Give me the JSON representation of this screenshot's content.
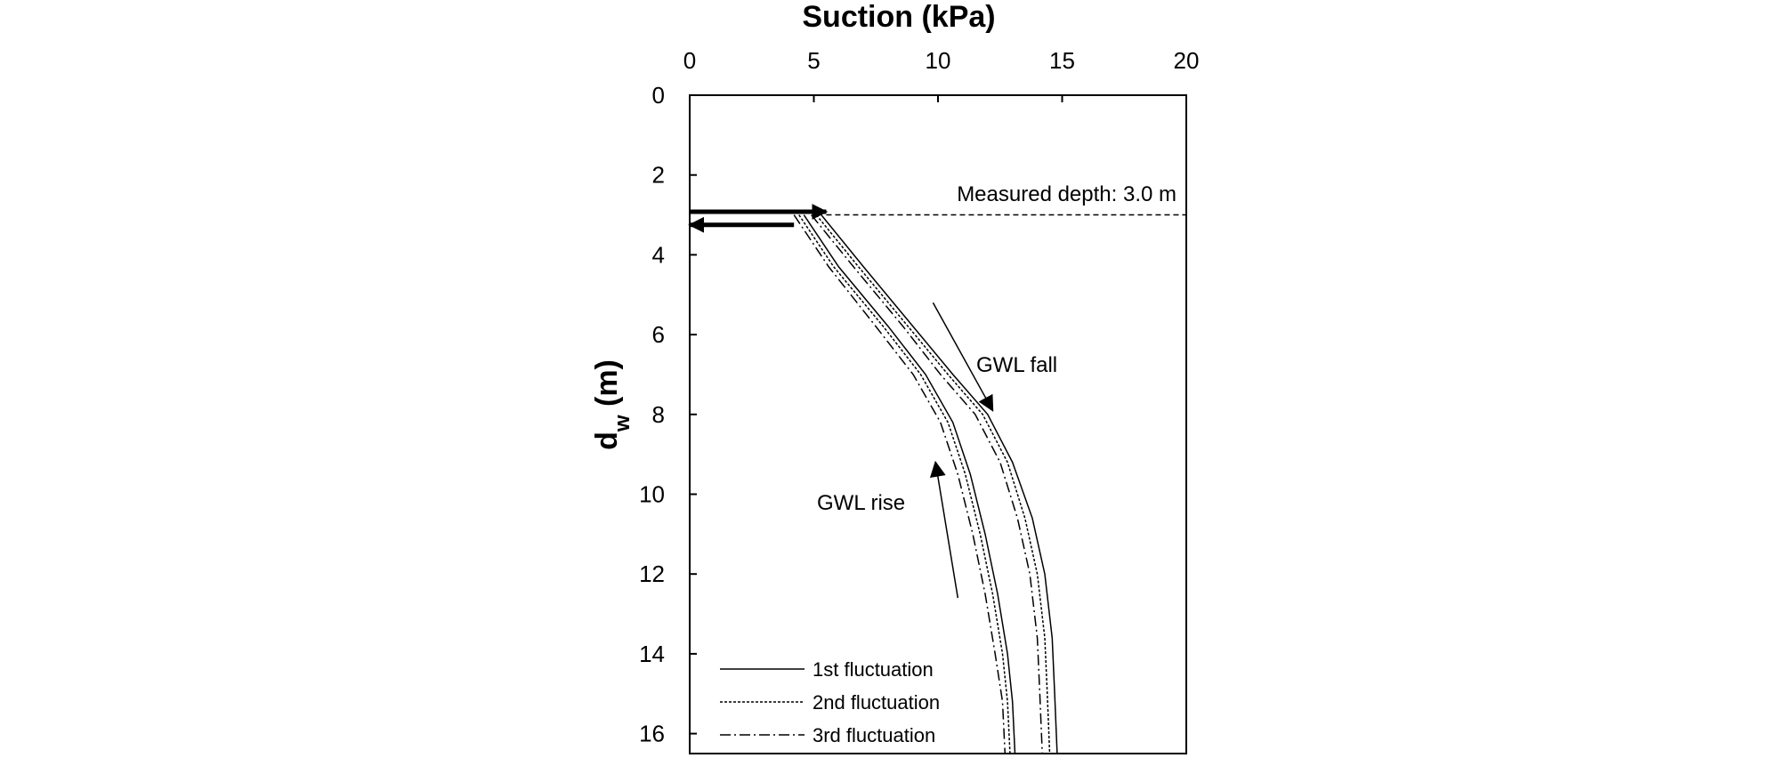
{
  "chart_data": {
    "type": "line",
    "title": "Suction (kPa)",
    "xlabel": "Suction (kPa)",
    "ylabel_main": "d",
    "ylabel_sub": "w",
    "ylabel_unit": " (m)",
    "xlim": [
      0,
      20
    ],
    "ylim": [
      0,
      16.5
    ],
    "x_ticks": [
      "0",
      "5",
      "10",
      "15",
      "20"
    ],
    "y_ticks": [
      "0",
      "2",
      "4",
      "6",
      "8",
      "10",
      "12",
      "14",
      "16"
    ],
    "x_axis_position": "top",
    "y_axis_inverted": true,
    "grid": false,
    "series": [
      {
        "name": "1st fluctuation",
        "style": "solid",
        "curves": [
          {
            "branch": "GWL fall",
            "points": [
              [
                5.3,
                3.0
              ],
              [
                7.0,
                4.3
              ],
              [
                9.0,
                5.8
              ],
              [
                10.6,
                7.0
              ],
              [
                12.0,
                8.0
              ],
              [
                13.0,
                9.2
              ],
              [
                13.8,
                10.6
              ],
              [
                14.3,
                12.0
              ],
              [
                14.6,
                13.6
              ],
              [
                14.7,
                15.0
              ],
              [
                14.8,
                16.5
              ]
            ]
          },
          {
            "branch": "GWL rise",
            "points": [
              [
                4.6,
                3.0
              ],
              [
                6.0,
                4.3
              ],
              [
                8.0,
                5.8
              ],
              [
                9.5,
                7.0
              ],
              [
                10.6,
                8.2
              ],
              [
                11.3,
                9.5
              ],
              [
                11.9,
                11.0
              ],
              [
                12.4,
                12.5
              ],
              [
                12.8,
                14.0
              ],
              [
                13.0,
                15.2
              ],
              [
                13.1,
                16.5
              ]
            ]
          }
        ]
      },
      {
        "name": "2nd fluctuation",
        "style": "dotted",
        "curves": [
          {
            "branch": "GWL fall",
            "points": [
              [
                5.1,
                3.0
              ],
              [
                6.8,
                4.3
              ],
              [
                8.8,
                5.8
              ],
              [
                10.4,
                7.0
              ],
              [
                11.8,
                8.0
              ],
              [
                12.8,
                9.2
              ],
              [
                13.5,
                10.6
              ],
              [
                14.0,
                12.0
              ],
              [
                14.3,
                13.6
              ],
              [
                14.4,
                15.0
              ],
              [
                14.5,
                16.5
              ]
            ]
          },
          {
            "branch": "GWL rise",
            "points": [
              [
                4.4,
                3.0
              ],
              [
                5.8,
                4.3
              ],
              [
                7.8,
                5.8
              ],
              [
                9.3,
                7.0
              ],
              [
                10.4,
                8.2
              ],
              [
                11.1,
                9.5
              ],
              [
                11.7,
                11.0
              ],
              [
                12.2,
                12.5
              ],
              [
                12.6,
                14.0
              ],
              [
                12.8,
                15.2
              ],
              [
                12.9,
                16.5
              ]
            ]
          }
        ]
      },
      {
        "name": "3rd fluctuation",
        "style": "dash-dot",
        "curves": [
          {
            "branch": "GWL fall",
            "points": [
              [
                4.9,
                3.0
              ],
              [
                6.6,
                4.3
              ],
              [
                8.6,
                5.8
              ],
              [
                10.1,
                7.0
              ],
              [
                11.5,
                8.0
              ],
              [
                12.5,
                9.2
              ],
              [
                13.2,
                10.6
              ],
              [
                13.7,
                12.0
              ],
              [
                14.0,
                13.6
              ],
              [
                14.1,
                15.0
              ],
              [
                14.2,
                16.5
              ]
            ]
          },
          {
            "branch": "GWL rise",
            "points": [
              [
                4.2,
                3.0
              ],
              [
                5.6,
                4.3
              ],
              [
                7.5,
                5.8
              ],
              [
                9.0,
                7.0
              ],
              [
                10.1,
                8.2
              ],
              [
                10.8,
                9.5
              ],
              [
                11.4,
                11.0
              ],
              [
                11.9,
                12.5
              ],
              [
                12.3,
                14.0
              ],
              [
                12.6,
                15.2
              ],
              [
                12.7,
                16.5
              ]
            ]
          }
        ]
      }
    ],
    "legend": [
      "1st fluctuation",
      "2nd fluctuation",
      "3rd fluctuation"
    ],
    "legend_position": "bottom-left",
    "annotations": {
      "measured_depth_label": "Measured depth: 3.0 m",
      "measured_depth_value": 3.0,
      "gwl_fall_label": "GWL fall",
      "gwl_rise_label": "GWL rise",
      "gwl_fall_arrow": {
        "from": [
          9.8,
          5.2
        ],
        "to": [
          12.2,
          7.9
        ]
      },
      "gwl_rise_arrow": {
        "from": [
          10.8,
          12.6
        ],
        "to": [
          9.9,
          9.2
        ]
      },
      "top_arrow": {
        "from": [
          0,
          2.92
        ],
        "to": [
          5.5,
          2.92
        ],
        "direction": "right"
      },
      "bottom_arrow": {
        "from": [
          4.2,
          3.25
        ],
        "to": [
          0,
          3.25
        ],
        "direction": "left"
      }
    }
  }
}
